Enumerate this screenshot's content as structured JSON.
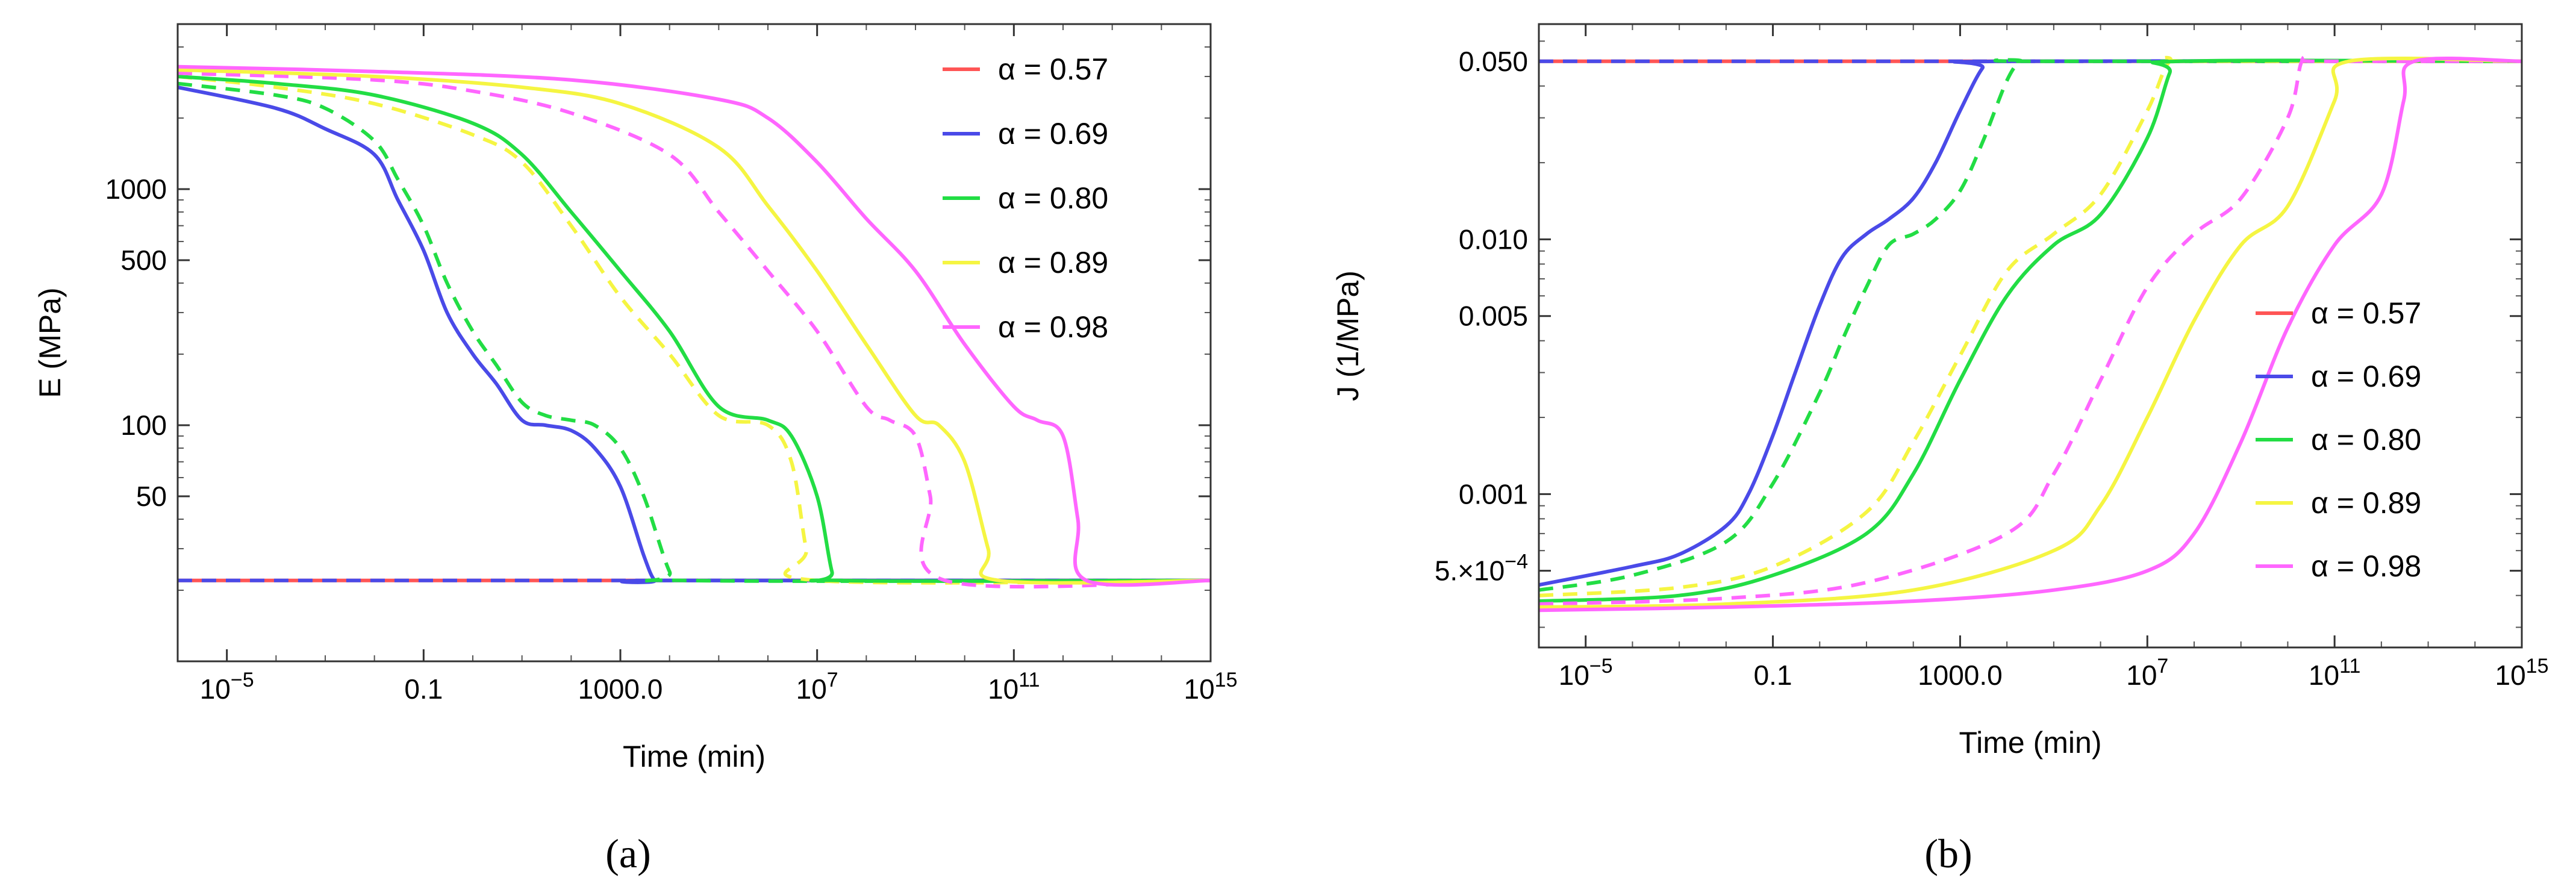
{
  "figure": {
    "panel_a_label": "(a)",
    "panel_b_label": "(b)"
  },
  "chart_data": [
    {
      "type": "line",
      "panel": "a",
      "panel_label": "(a)",
      "xlabel": "Time (min)",
      "ylabel": "E (MPa)",
      "xscale": "log",
      "yscale": "log",
      "xlim": [
        1e-06,
        1000000000000000.0
      ],
      "ylim": [
        10,
        5000
      ],
      "x_ticks": [
        {
          "value": 1e-05,
          "base": "10",
          "exp": "−5"
        },
        {
          "value": 0.1,
          "label": "0.1"
        },
        {
          "value": 1000,
          "label": "1000.0"
        },
        {
          "value": 10000000.0,
          "base": "10",
          "exp": "7"
        },
        {
          "value": 100000000000.0,
          "base": "10",
          "exp": "11"
        },
        {
          "value": 1000000000000000.0,
          "base": "10",
          "exp": "15"
        }
      ],
      "y_ticks": [
        {
          "value": 50,
          "label": "50"
        },
        {
          "value": 100,
          "label": "100"
        },
        {
          "value": 500,
          "label": "500"
        },
        {
          "value": 1000,
          "label": "1000"
        }
      ],
      "legend_position": "top-right",
      "legend": [
        {
          "label": "α = 0.57",
          "color": "#ff5555"
        },
        {
          "label": "α = 0.69",
          "color": "#4a4ae8"
        },
        {
          "label": "α = 0.80",
          "color": "#22dd44"
        },
        {
          "label": "α = 0.89",
          "color": "#f5f542"
        },
        {
          "label": "α = 0.98",
          "color": "#ff66ff"
        }
      ],
      "series": [
        {
          "name": "red baseline",
          "color": "#ff5555",
          "dash": "none",
          "x": [
            1e-06,
            1000000000000000.0
          ],
          "y": [
            22,
            22
          ]
        },
        {
          "name": "blue baseline dashed",
          "color": "#4a4ae8",
          "dash": "dash",
          "x": [
            1e-06,
            1000000000000000.0
          ],
          "y": [
            22,
            22
          ]
        },
        {
          "name": "α = 0.69",
          "color": "#4a4ae8",
          "dash": "none",
          "x": [
            1e-06,
            0.0001,
            0.001,
            0.01,
            0.03,
            0.1,
            0.3,
            1,
            3,
            10,
            30,
            100,
            300,
            1000,
            3000,
            5000,
            8000,
            1000000000000000.0
          ],
          "y": [
            2700,
            2200,
            1800,
            1400,
            900,
            550,
            300,
            200,
            150,
            105,
            100,
            95,
            80,
            55,
            28,
            22,
            22,
            22
          ]
        },
        {
          "name": "α = 0.80 dashed",
          "color": "#22dd44",
          "dash": "dash",
          "x": [
            1e-06,
            0.0001,
            0.001,
            0.01,
            0.03,
            0.1,
            0.3,
            1,
            3,
            10,
            30,
            100,
            300,
            1000,
            3000,
            10000.0,
            20000.0,
            1000000000000000.0
          ],
          "y": [
            2800,
            2500,
            2200,
            1600,
            1100,
            700,
            400,
            250,
            180,
            125,
            110,
            105,
            100,
            80,
            50,
            24,
            22,
            22
          ]
        },
        {
          "name": "α = 0.89 dashed",
          "color": "#f5f542",
          "dash": "dash",
          "x": [
            1e-06,
            0.0001,
            0.01,
            1,
            10,
            100,
            1000,
            10000.0,
            100000.0,
            1000000.0,
            3000000.0,
            6000000.0,
            10000000.0,
            1000000000000000.0
          ],
          "y": [
            3000,
            2700,
            2300,
            1700,
            1300,
            700,
            350,
            200,
            110,
            100,
            70,
            30,
            22,
            22
          ]
        },
        {
          "name": "α = 0.80",
          "color": "#22dd44",
          "dash": "none",
          "x": [
            1e-06,
            0.0001,
            0.01,
            1,
            10,
            100,
            1000,
            10000.0,
            100000.0,
            1000000.0,
            3000000.0,
            10000000.0,
            20000000.0,
            30000000.0,
            1000000000000000.0
          ],
          "y": [
            3000,
            2800,
            2500,
            1900,
            1400,
            800,
            450,
            250,
            120,
            105,
            90,
            50,
            24,
            22,
            22
          ]
        },
        {
          "name": "α = 0.98 dashed",
          "color": "#ff66ff",
          "dash": "dash",
          "x": [
            1e-06,
            0.01,
            1,
            100,
            10000.0,
            100000.0,
            1000000.0,
            10000000.0,
            100000000.0,
            300000000.0,
            1000000000.0,
            2000000000.0,
            4000000000.0,
            1000000000000000.0
          ],
          "y": [
            3100,
            2900,
            2600,
            2100,
            1400,
            800,
            450,
            250,
            120,
            105,
            90,
            50,
            22,
            22
          ]
        },
        {
          "name": "α = 0.89",
          "color": "#f5f542",
          "dash": "none",
          "x": [
            1e-06,
            0.01,
            10,
            1000.0,
            100000.0,
            1000000.0,
            10000000.0,
            100000000.0,
            1000000000.0,
            3000000000.0,
            10000000000.0,
            30000000000.0,
            50000000000.0,
            1000000000000000.0
          ],
          "y": [
            3200,
            3000,
            2700,
            2300,
            1500,
            850,
            450,
            220,
            110,
            100,
            70,
            30,
            22,
            22
          ]
        },
        {
          "name": "α = 0.98",
          "color": "#ff66ff",
          "dash": "none",
          "x": [
            1e-06,
            0.01,
            100,
            100000.0,
            1000000.0,
            10000000.0,
            100000000.0,
            1000000000.0,
            10000000000.0,
            100000000000.0,
            300000000000.0,
            1000000000000.0,
            2000000000000.0,
            3000000000000.0,
            1000000000000000.0
          ],
          "y": [
            3300,
            3150,
            2900,
            2400,
            2000,
            1300,
            750,
            450,
            220,
            120,
            105,
            90,
            40,
            22,
            22
          ]
        }
      ]
    },
    {
      "type": "line",
      "panel": "b",
      "panel_label": "(b)",
      "xlabel": "Time (min)",
      "ylabel": "J (1/MPa)",
      "xscale": "log",
      "yscale": "log",
      "xlim": [
        1e-06,
        1000000000000000.0
      ],
      "ylim": [
        0.00025,
        0.07
      ],
      "x_ticks": [
        {
          "value": 1e-05,
          "base": "10",
          "exp": "−5"
        },
        {
          "value": 0.1,
          "label": "0.1"
        },
        {
          "value": 1000,
          "label": "1000.0"
        },
        {
          "value": 10000000.0,
          "base": "10",
          "exp": "7"
        },
        {
          "value": 100000000000.0,
          "base": "10",
          "exp": "11"
        },
        {
          "value": 1000000000000000.0,
          "base": "10",
          "exp": "15"
        }
      ],
      "y_ticks": [
        {
          "value": 0.0005,
          "base": "5.×10",
          "exp": "−4"
        },
        {
          "value": 0.001,
          "label": "0.001"
        },
        {
          "value": 0.005,
          "label": "0.005"
        },
        {
          "value": 0.01,
          "label": "0.010"
        },
        {
          "value": 0.05,
          "label": "0.050"
        }
      ],
      "legend_position": "bottom-right",
      "legend": [
        {
          "label": "α = 0.57",
          "color": "#ff5555"
        },
        {
          "label": "α = 0.69",
          "color": "#4a4ae8"
        },
        {
          "label": "α = 0.80",
          "color": "#22dd44"
        },
        {
          "label": "α = 0.89",
          "color": "#f5f542"
        },
        {
          "label": "α = 0.98",
          "color": "#ff66ff"
        }
      ],
      "series": [
        {
          "name": "red baseline",
          "color": "#ff5555",
          "dash": "none",
          "x": [
            1e-06,
            1000000000000000.0
          ],
          "y": [
            0.05,
            0.05
          ]
        },
        {
          "name": "blue baseline dashed",
          "color": "#4a4ae8",
          "dash": "dash",
          "x": [
            1e-06,
            1000000000000000.0
          ],
          "y": [
            0.05,
            0.05
          ]
        },
        {
          "name": "α = 0.69",
          "color": "#4a4ae8",
          "dash": "none",
          "x": [
            1e-06,
            0.0001,
            0.001,
            0.01,
            0.03,
            0.1,
            0.3,
            1,
            3,
            10,
            30,
            100,
            300,
            1000,
            3000,
            6000,
            1000000000000000.0
          ],
          "y": [
            0.00044,
            0.00052,
            0.00058,
            0.00075,
            0.001,
            0.0017,
            0.003,
            0.0055,
            0.0085,
            0.0105,
            0.012,
            0.0145,
            0.02,
            0.032,
            0.047,
            0.05,
            0.05
          ]
        },
        {
          "name": "α = 0.80 dashed",
          "color": "#22dd44",
          "dash": "dash",
          "x": [
            1e-06,
            0.0001,
            0.01,
            0.1,
            1,
            3,
            10,
            30,
            100,
            300,
            1000,
            3000,
            10000.0,
            20000.0,
            40000.0,
            1000000000000000.0
          ],
          "y": [
            0.00042,
            0.00048,
            0.00065,
            0.0011,
            0.0025,
            0.004,
            0.0065,
            0.0095,
            0.0105,
            0.012,
            0.0155,
            0.024,
            0.042,
            0.05,
            0.05,
            0.05
          ]
        },
        {
          "name": "α = 0.89 dashed",
          "color": "#f5f542",
          "dash": "dash",
          "x": [
            1e-06,
            0.001,
            0.1,
            10,
            100,
            1000,
            10000.0,
            100000.0,
            1000000.0,
            10000000.0,
            30000000.0,
            100000000.0,
            1000000000000000.0
          ],
          "y": [
            0.0004,
            0.00043,
            0.00052,
            0.00085,
            0.0016,
            0.0035,
            0.0075,
            0.0105,
            0.015,
            0.032,
            0.05,
            0.05,
            0.05
          ]
        },
        {
          "name": "α = 0.80",
          "color": "#22dd44",
          "dash": "none",
          "x": [
            1e-06,
            0.001,
            0.1,
            10,
            100,
            1000,
            10000.0,
            100000.0,
            1000000.0,
            10000000.0,
            30000000.0,
            50000000.0,
            1000000000000000.0
          ],
          "y": [
            0.00038,
            0.0004,
            0.00048,
            0.0007,
            0.0012,
            0.0028,
            0.006,
            0.0095,
            0.0125,
            0.025,
            0.045,
            0.05,
            0.05
          ]
        },
        {
          "name": "α = 0.98 dashed",
          "color": "#ff66ff",
          "dash": "dash",
          "x": [
            1e-06,
            0.01,
            10,
            10000.0,
            100000.0,
            1000000.0,
            10000000.0,
            100000000.0,
            1000000000.0,
            10000000000.0,
            20000000000.0,
            40000000000.0,
            1000000000000000.0
          ],
          "y": [
            0.00037,
            0.00039,
            0.00045,
            0.0007,
            0.0012,
            0.0028,
            0.0065,
            0.0105,
            0.0145,
            0.03,
            0.05,
            0.05,
            0.05
          ]
        },
        {
          "name": "α = 0.89",
          "color": "#f5f542",
          "dash": "none",
          "x": [
            1e-06,
            0.01,
            100,
            100000.0,
            1000000.0,
            10000000.0,
            100000000.0,
            1000000000.0,
            10000000000.0,
            100000000000.0,
            200000000000.0,
            1000000000000000.0
          ],
          "y": [
            0.00036,
            0.00037,
            0.00042,
            0.0006,
            0.0009,
            0.002,
            0.0048,
            0.0095,
            0.0135,
            0.035,
            0.05,
            0.05
          ]
        },
        {
          "name": "α = 0.98",
          "color": "#ff66ff",
          "dash": "none",
          "x": [
            1e-06,
            0.01,
            100,
            100000.0,
            10000000.0,
            100000000.0,
            1000000000.0,
            10000000000.0,
            100000000000.0,
            1000000000000.0,
            3000000000000.0,
            5000000000000.0,
            1000000000000000.0
          ],
          "y": [
            0.00035,
            0.00036,
            0.00038,
            0.00042,
            0.0005,
            0.0007,
            0.0016,
            0.0045,
            0.0095,
            0.015,
            0.035,
            0.05,
            0.05
          ]
        }
      ]
    }
  ]
}
